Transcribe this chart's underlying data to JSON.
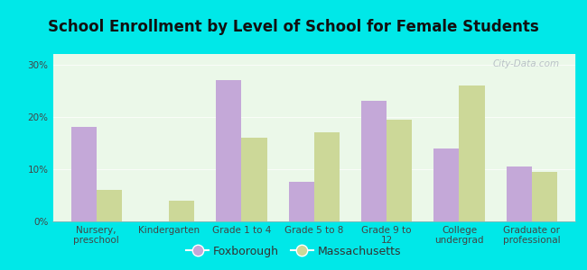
{
  "title": "School Enrollment by Level of School for Female Students",
  "categories": [
    "Nursery,\npreschool",
    "Kindergarten",
    "Grade 1 to 4",
    "Grade 5 to 8",
    "Grade 9 to\n12",
    "College\nundergrad",
    "Graduate or\nprofessional"
  ],
  "foxborough": [
    18.0,
    0.0,
    27.0,
    7.5,
    23.0,
    14.0,
    10.5
  ],
  "massachusetts": [
    6.0,
    4.0,
    16.0,
    17.0,
    19.5,
    26.0,
    9.5
  ],
  "fox_color": "#c4a8d8",
  "mass_color": "#ccd898",
  "cyan_bg": "#00e8e8",
  "plot_bg_top": "#e8f5e0",
  "plot_bg_bottom": "#f5fff5",
  "ylim": [
    0,
    32
  ],
  "yticks": [
    0,
    10,
    20,
    30
  ],
  "ytick_labels": [
    "0%",
    "10%",
    "20%",
    "30%"
  ],
  "bar_width": 0.35,
  "legend_labels": [
    "Foxborough",
    "Massachusetts"
  ],
  "title_fontsize": 12,
  "tick_fontsize": 7.5,
  "legend_fontsize": 9,
  "watermark": "City-Data.com"
}
